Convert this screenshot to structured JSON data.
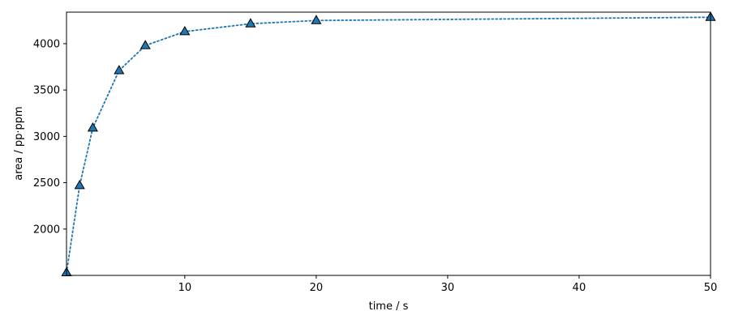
{
  "chart_data": {
    "type": "line",
    "title": "",
    "xlabel": "time / s",
    "ylabel": "area / pp·ppm",
    "xlim": [
      1,
      50
    ],
    "ylim": [
      1500,
      4340
    ],
    "x_ticks": [
      10,
      20,
      30,
      40,
      50
    ],
    "y_ticks": [
      2000,
      2500,
      3000,
      3500,
      4000
    ],
    "grid": false,
    "legend": "none",
    "series": [
      {
        "x": [
          1,
          2,
          3,
          5,
          7,
          10,
          15,
          20,
          50
        ],
        "y": [
          1530,
          2470,
          3090,
          3710,
          3980,
          4130,
          4215,
          4250,
          4285
        ],
        "marker": "triangle",
        "line_style": "dotted",
        "color": "#1f77b4",
        "edge_color": "#000000"
      }
    ]
  }
}
